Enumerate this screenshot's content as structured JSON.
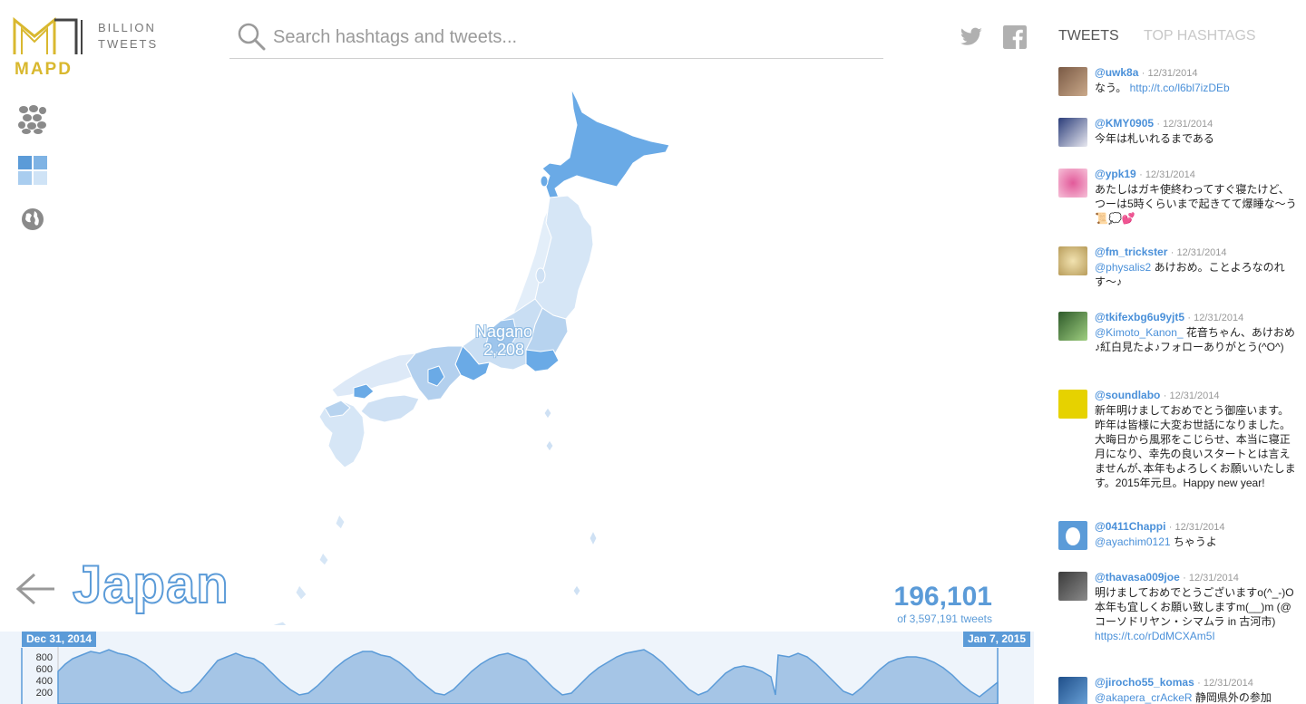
{
  "logo": {
    "line1": "BILLION",
    "line2": "TWEETS",
    "brand": "MAPD"
  },
  "search": {
    "placeholder": "Search hashtags and tweets..."
  },
  "tabs": {
    "tweets": "TWEETS",
    "top_hashtags": "TOP HASHTAGS"
  },
  "map": {
    "hover_region": "Nagano",
    "hover_value": "2,208"
  },
  "country": "Japan",
  "counts": {
    "total": "196,101",
    "sub": "of 3,597,191 tweets"
  },
  "timeline": {
    "start_label": "Dec 31, 2014",
    "end_label": "Jan 7, 2015",
    "yticks": [
      "800",
      "600",
      "400",
      "200"
    ]
  },
  "colors": {
    "accent": "#5b9bd8",
    "logo_gold": "#d9b82f",
    "map_light": "#d6e6f6",
    "map_dark": "#6aaae6"
  },
  "tweets": [
    {
      "user": "@uwk8a",
      "date": "12/31/2014",
      "text": "なう。",
      "link": "http://t.co/l6bl7izDEb"
    },
    {
      "user": "@KMY0905",
      "date": "12/31/2014",
      "text": "今年は札いれるまである",
      "link": ""
    },
    {
      "user": "@ypk19",
      "date": "12/31/2014",
      "text": "あたしはガキ使終わってすぐ寝たけど、つーは5時くらいまで起きてて爆睡な〜う📜💭💕",
      "link": ""
    },
    {
      "user": "@fm_trickster",
      "date": "12/31/2014",
      "mention": "@physalis2",
      "text": "あけおめ。ことよろなのれす〜♪",
      "link": ""
    },
    {
      "user": "@tkifexbg6u9yjt5",
      "date": "12/31/2014",
      "mention": "@Kimoto_Kanon_",
      "text": "花音ちゃん、あけおめ♪紅白見たよ♪フォローありがとう(^O^)",
      "link": ""
    },
    {
      "user": "@soundlabo",
      "date": "12/31/2014",
      "text": "新年明けましておめでとう御座います。 昨年は皆様に大変お世話になりました。 大晦日から風邪をこじらせ、本当に寝正月になり、幸先の良いスタートとは言えませんが､本年もよろしくお願いいたします。2015年元旦。Happy new year!",
      "link": ""
    },
    {
      "user": "@0411Chappi",
      "date": "12/31/2014",
      "mention": "@ayachim0121",
      "text": "ちゃうよ",
      "link": ""
    },
    {
      "user": "@thavasa009joe",
      "date": "12/31/2014",
      "text": "明けましておめでとうございますo(^_-)O 本年も宜しくお願い致しますm(__)m (@ コーソドリヤン・シマムラ in 古河市)",
      "link": "https://t.co/rDdMCXAm5I"
    },
    {
      "user": "@jirocho55_komas",
      "date": "12/31/2014",
      "mention": "@akapera_crAckeR",
      "text": "静岡県外の参加",
      "link": ""
    }
  ]
}
